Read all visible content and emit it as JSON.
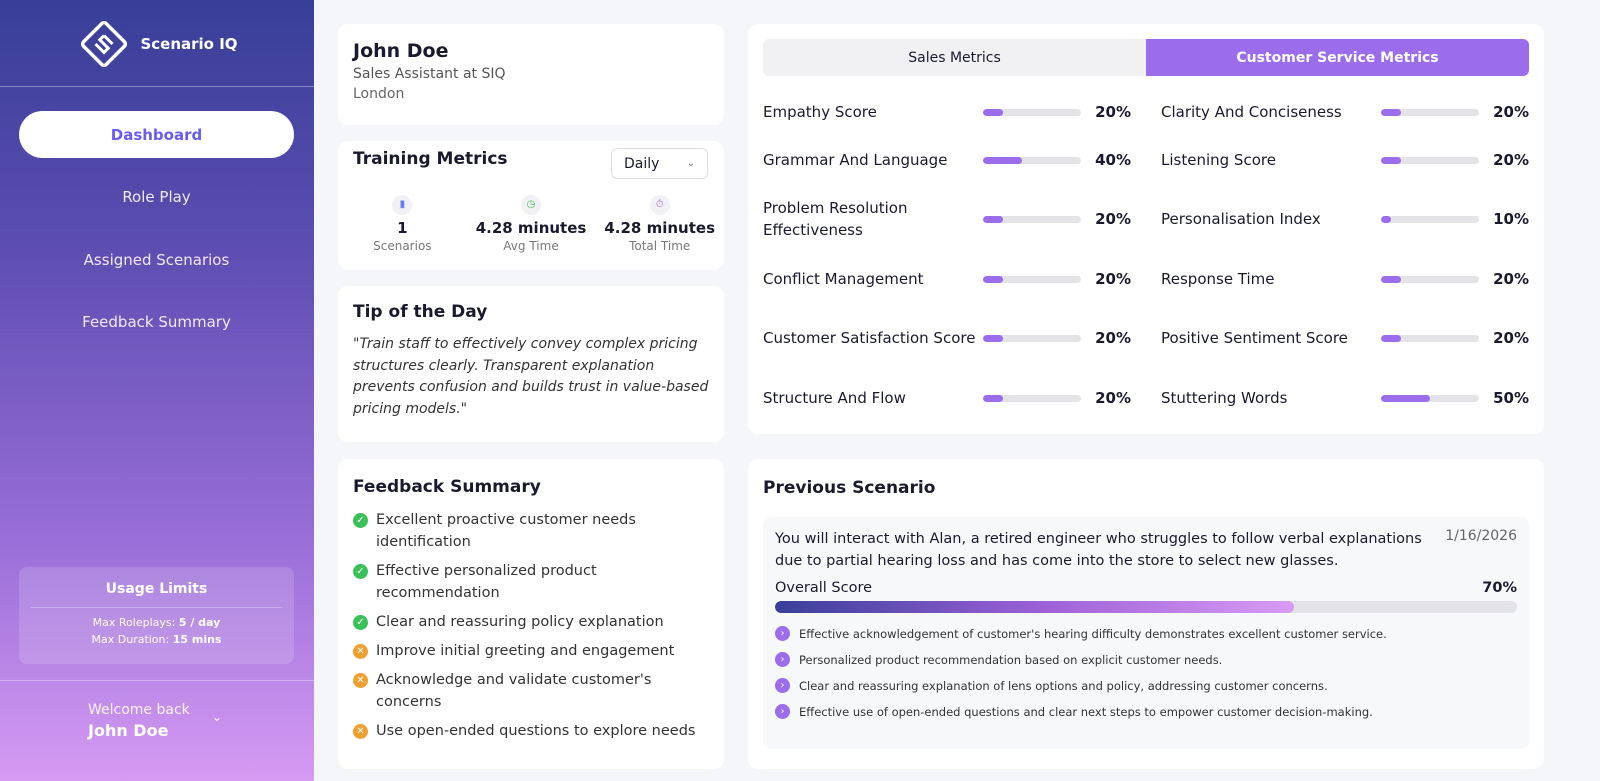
{
  "app": {
    "name": "Scenario IQ"
  },
  "nav": [
    {
      "label": "Dashboard",
      "active": true
    },
    {
      "label": "Role Play"
    },
    {
      "label": "Assigned Scenarios"
    },
    {
      "label": "Feedback Summary"
    }
  ],
  "usage": {
    "title": "Usage Limits",
    "roleplays_label": "Max Roleplays:",
    "roleplays": "5 / day",
    "duration_label": "Max Duration:",
    "duration": "15 mins"
  },
  "user": {
    "welcome": "Welcome back",
    "name": "John Doe",
    "role": "Sales Assistant at SIQ",
    "location": "London"
  },
  "training": {
    "title": "Training Metrics",
    "period": "Daily",
    "stats": [
      {
        "icon": "bar-chart-icon",
        "value": "1",
        "label": "Scenarios"
      },
      {
        "icon": "clock-icon",
        "value": "4.28 minutes",
        "label": "Avg Time"
      },
      {
        "icon": "stopwatch-icon",
        "value": "4.28 minutes",
        "label": "Total Time"
      }
    ]
  },
  "tip": {
    "title": "Tip of the Day",
    "text": "\"Train staff to effectively convey complex pricing structures clearly. Transparent explanation prevents confusion and builds trust in value-based pricing models.\""
  },
  "feedback": {
    "title": "Feedback Summary",
    "items": [
      {
        "text": "Excellent proactive customer needs identification",
        "type": "positive"
      },
      {
        "text": "Effective personalized product recommendation",
        "type": "positive"
      },
      {
        "text": "Clear and reassuring policy explanation",
        "type": "positive"
      },
      {
        "text": "Improve initial greeting and engagement",
        "type": "negative"
      },
      {
        "text": "Acknowledge and validate customer's concerns",
        "type": "negative"
      },
      {
        "text": "Use open-ended questions to explore needs",
        "type": "negative"
      }
    ]
  },
  "metrics": {
    "tabs": [
      "Sales Metrics",
      "Customer Service Metrics"
    ],
    "active_tab": 1,
    "left": [
      {
        "label": "Empathy Score",
        "value": 20
      },
      {
        "label": "Grammar And Language",
        "value": 40
      },
      {
        "label": "Problem Resolution Effectiveness",
        "value": 20
      },
      {
        "label": "Conflict Management",
        "value": 20
      },
      {
        "label": "Customer Satisfaction Score",
        "value": 20
      },
      {
        "label": "Structure And Flow",
        "value": 20
      }
    ],
    "right": [
      {
        "label": "Clarity And Conciseness",
        "value": 20
      },
      {
        "label": "Listening Score",
        "value": 20
      },
      {
        "label": "Personalisation Index",
        "value": 10
      },
      {
        "label": "Response Time",
        "value": 20
      },
      {
        "label": "Positive Sentiment Score",
        "value": 20
      },
      {
        "label": "Stuttering Words",
        "value": 50
      }
    ]
  },
  "previous": {
    "title": "Previous Scenario",
    "description": "You will interact with Alan, a retired engineer who struggles to follow verbal explanations due to partial hearing loss and has come into the store to select new glasses.",
    "date": "1/16/2026",
    "score_label": "Overall Score",
    "score": "70%",
    "score_value": 70,
    "points": [
      "Effective acknowledgement of customer's hearing difficulty demonstrates excellent customer service.",
      "Personalized product recommendation based on explicit customer needs.",
      "Clear and reassuring explanation of lens options and policy, addressing customer concerns.",
      "Effective use of open-ended questions and clear next steps to empower customer decision-making."
    ]
  },
  "colors": {
    "accent": "#9b6cec",
    "positive": "#3cc05a",
    "negative": "#f0a030"
  }
}
